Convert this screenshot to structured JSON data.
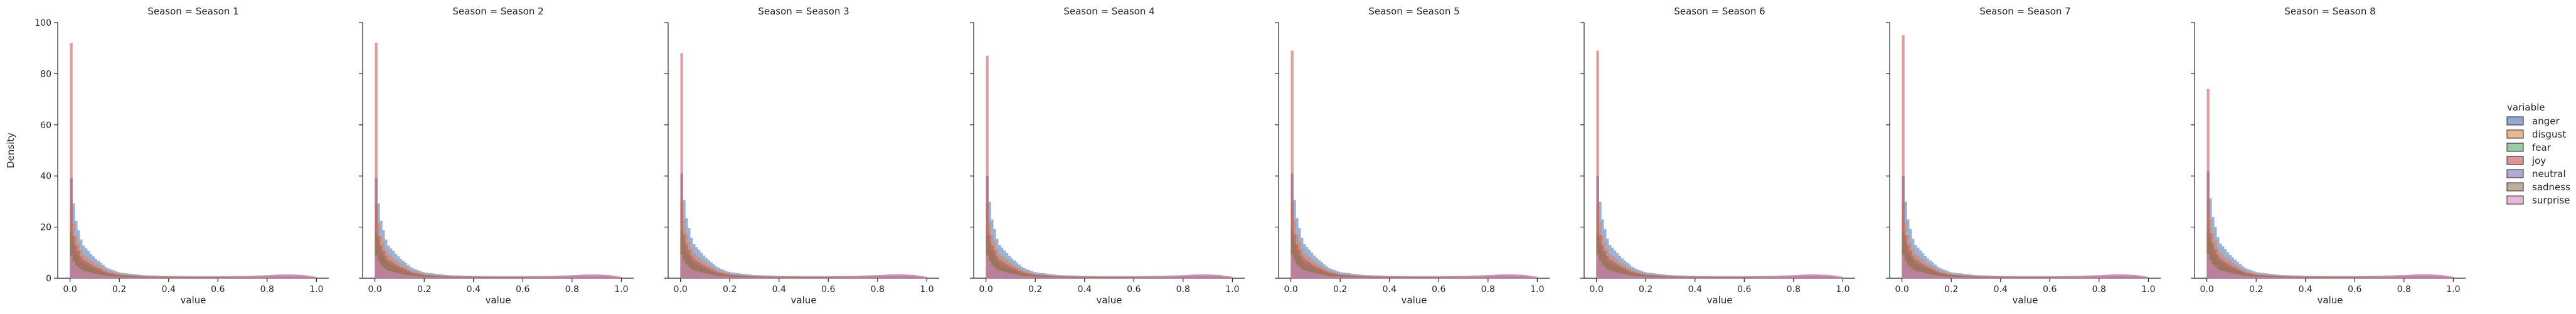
{
  "chart_data": {
    "type": "histogram-facet",
    "ylabel": "Density",
    "xlabel": "value",
    "ylim": [
      0,
      100
    ],
    "xlim": [
      -0.05,
      1.05
    ],
    "yticks": [
      0,
      20,
      40,
      60,
      80,
      100
    ],
    "xticks": [
      0.0,
      0.2,
      0.4,
      0.6,
      0.8,
      1.0
    ],
    "xtick_labels": [
      "0.0",
      "0.2",
      "0.4",
      "0.6",
      "0.8",
      "1.0"
    ],
    "ytick_labels": [
      "0",
      "20",
      "40",
      "60",
      "80",
      "100"
    ],
    "legend": {
      "title": "variable",
      "placement": "right",
      "entries": [
        "anger",
        "disgust",
        "fear",
        "joy",
        "neutral",
        "sadness",
        "surprise"
      ]
    },
    "series_colors": {
      "anger": "#4c72b0",
      "disgust": "#dd8452",
      "fear": "#55a868",
      "joy": "#c44e52",
      "neutral": "#8172b3",
      "sadness": "#937860",
      "surprise": "#da8bc3"
    },
    "stacking": "layered",
    "facets": [
      {
        "title": "Season = Season 1",
        "joy_peak": 92,
        "stack_peak": 45
      },
      {
        "title": "Season = Season 2",
        "joy_peak": 92,
        "stack_peak": 45
      },
      {
        "title": "Season = Season 3",
        "joy_peak": 88,
        "stack_peak": 47
      },
      {
        "title": "Season = Season 4",
        "joy_peak": 87,
        "stack_peak": 46
      },
      {
        "title": "Season = Season 5",
        "joy_peak": 89,
        "stack_peak": 47
      },
      {
        "title": "Season = Season 6",
        "joy_peak": 89,
        "stack_peak": 46
      },
      {
        "title": "Season = Season 7",
        "joy_peak": 95,
        "stack_peak": 46
      },
      {
        "title": "Season = Season 8",
        "joy_peak": 74,
        "stack_peak": 48
      }
    ],
    "approx_curve": {
      "x": [
        0.0,
        0.02,
        0.05,
        0.1,
        0.15,
        0.2,
        0.3,
        0.4,
        0.5,
        0.6,
        0.7,
        0.8,
        0.85,
        0.9,
        0.95,
        1.0
      ],
      "stack_density_fraction": [
        1.0,
        0.55,
        0.3,
        0.18,
        0.09,
        0.05,
        0.025,
        0.02,
        0.018,
        0.018,
        0.02,
        0.025,
        0.03,
        0.03,
        0.025,
        0.01
      ],
      "surprise_tail": [
        0,
        0,
        0,
        0,
        0,
        0,
        0,
        0,
        0,
        0,
        0.3,
        0.8,
        1.2,
        1.3,
        1.0,
        0.4
      ]
    }
  }
}
